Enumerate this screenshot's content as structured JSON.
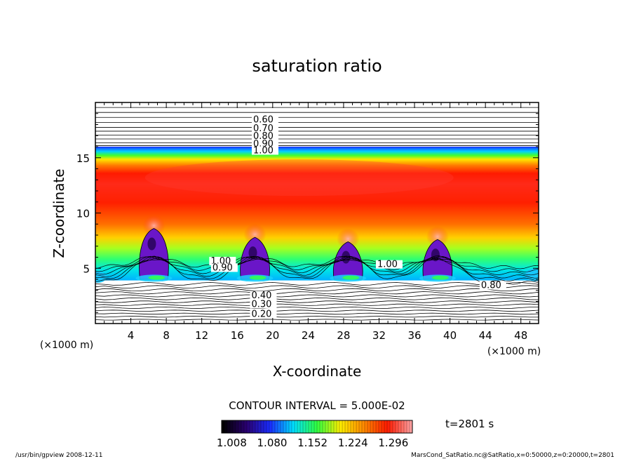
{
  "chart_data": {
    "type": "heatmap",
    "title": "saturation ratio",
    "xlabel": "X-coordinate",
    "ylabel": "Z-coordinate",
    "x_unit": "(×1000 m)",
    "z_unit": "(×1000 m)",
    "xlim": [
      0,
      50
    ],
    "ylim": [
      0,
      20
    ],
    "x_ticks": [
      4,
      8,
      12,
      16,
      20,
      24,
      28,
      32,
      36,
      40,
      44,
      48
    ],
    "y_ticks": [
      5,
      10,
      15
    ],
    "contour_interval_text": "CONTOUR INTERVAL = 5.000E-02",
    "time_text": "t=2801 s",
    "colorbar_ticks": [
      "1.008",
      "1.080",
      "1.152",
      "1.224",
      "1.296"
    ],
    "colorbar_range": [
      0.99,
      1.33
    ],
    "colormap": [
      "#000000",
      "#2a0070",
      "#1a2cff",
      "#00e0ff",
      "#30ff40",
      "#ffee00",
      "#ff8800",
      "#ff1a00",
      "#ff9e9e"
    ],
    "contour_labels": [
      {
        "text": "0.60",
        "x": 17.8,
        "z": 18.2
      },
      {
        "text": "0.70",
        "x": 17.8,
        "z": 17.4
      },
      {
        "text": "0.80",
        "x": 17.8,
        "z": 16.7
      },
      {
        "text": "0.90",
        "x": 17.8,
        "z": 16.0
      },
      {
        "text": "1.00",
        "x": 17.8,
        "z": 15.4
      },
      {
        "text": "1.00",
        "x": 13.0,
        "z": 5.4
      },
      {
        "text": "0.90",
        "x": 13.2,
        "z": 4.8
      },
      {
        "text": "1.00",
        "x": 31.8,
        "z": 5.1
      },
      {
        "text": "0.80",
        "x": 43.5,
        "z": 3.2
      },
      {
        "text": "0.40",
        "x": 17.6,
        "z": 2.3
      },
      {
        "text": "0.30",
        "x": 17.6,
        "z": 1.5
      },
      {
        "text": "0.20",
        "x": 17.6,
        "z": 0.6
      }
    ],
    "plumes": [
      {
        "x": 6.6,
        "top_z": 8.6
      },
      {
        "x": 18.0,
        "top_z": 7.8
      },
      {
        "x": 28.5,
        "top_z": 7.4
      },
      {
        "x": 38.6,
        "top_z": 7.6
      }
    ]
  },
  "footer": {
    "left": "/usr/bin/gpview   2008-12-11",
    "right": "MarsCond_SatRatio.nc@SatRatio,x=0:50000,z=0:20000,t=2801"
  }
}
